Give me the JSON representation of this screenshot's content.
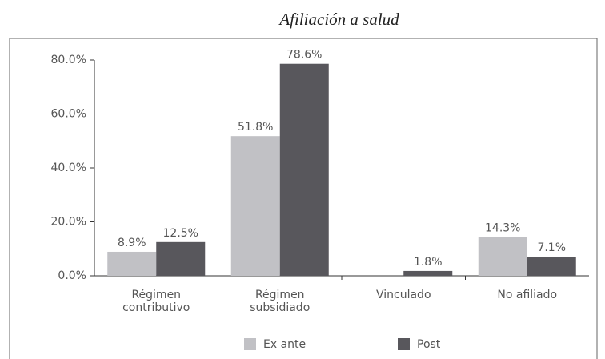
{
  "chart_data": {
    "type": "bar",
    "title": "Afiliación a salud",
    "categories": [
      "Régimen\ncontributivo",
      "Régimen\nsubsidiado",
      "Vinculado",
      "No afiliado"
    ],
    "series": [
      {
        "name": "Ex ante",
        "color": "#c1c1c5",
        "values": [
          8.9,
          51.8,
          null,
          14.3
        ],
        "value_labels": [
          "8.9%",
          "51.8%",
          null,
          "14.3%"
        ]
      },
      {
        "name": "Post",
        "color": "#58575c",
        "values": [
          12.5,
          78.6,
          1.8,
          7.1
        ],
        "value_labels": [
          "12.5%",
          "78.6%",
          "1.8%",
          "7.1%"
        ]
      }
    ],
    "ylim": [
      0,
      80
    ],
    "yticks": [
      {
        "value": 0,
        "label": "0.0%"
      },
      {
        "value": 20,
        "label": "20.0%"
      },
      {
        "value": 40,
        "label": "40.0%"
      },
      {
        "value": 60,
        "label": "60.0%"
      },
      {
        "value": 80,
        "label": "80.0%"
      }
    ],
    "legend": "bottom"
  }
}
